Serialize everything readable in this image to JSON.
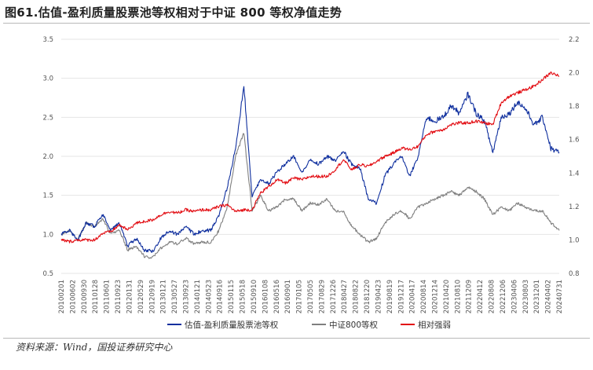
{
  "title": "图61.估值-盈利质量股票池等权相对于中证 800 等权净值走势",
  "source": "资料来源：Wind，国投证券研究中心",
  "chart_data": {
    "type": "line",
    "left_axis": {
      "min": 0.5,
      "max": 3.5,
      "ticks": [
        "0.5",
        "1.0",
        "1.5",
        "2.0",
        "2.5",
        "3.0",
        "3.5"
      ]
    },
    "right_axis": {
      "min": 0.8,
      "max": 2.2,
      "ticks": [
        "0.8",
        "1.0",
        "1.2",
        "1.4",
        "1.6",
        "1.8",
        "2.0",
        "2.2"
      ]
    },
    "x_ticks": [
      "20100201",
      "20100602",
      "20100930",
      "20110128",
      "20110601",
      "20110923",
      "20120131",
      "20120529",
      "20120919",
      "20130121",
      "20130527",
      "20130923",
      "20140121",
      "20140523",
      "20140916",
      "20150115",
      "20150518",
      "20150910",
      "20160108",
      "20160516",
      "20160901",
      "20170105",
      "20170505",
      "20170829",
      "20171226",
      "20180427",
      "20180822",
      "20181220",
      "20190423",
      "20190819",
      "20191217",
      "20200417",
      "20200814",
      "20201214",
      "20210420",
      "20210810",
      "20211209",
      "20220412",
      "20220808",
      "20221206",
      "20230406",
      "20230803",
      "20231201",
      "20240402",
      "20240731"
    ],
    "series": [
      {
        "name": "估值-盈利质量股票池等权",
        "axis": "left",
        "color": "#0f2f9e",
        "values": [
          1.0,
          1.05,
          0.93,
          1.15,
          1.1,
          1.25,
          1.05,
          1.15,
          0.85,
          0.95,
          0.8,
          0.78,
          0.95,
          1.05,
          1.0,
          1.1,
          1.0,
          1.05,
          1.05,
          1.25,
          1.6,
          2.1,
          2.9,
          1.5,
          1.7,
          1.65,
          1.8,
          1.9,
          2.0,
          1.8,
          1.95,
          1.9,
          2.0,
          1.95,
          2.05,
          1.9,
          1.85,
          1.45,
          1.4,
          1.75,
          1.9,
          2.0,
          1.75,
          2.0,
          2.5,
          2.45,
          2.5,
          2.65,
          2.55,
          2.8,
          2.55,
          2.45,
          2.05,
          2.5,
          2.55,
          2.7,
          2.6,
          2.4,
          2.5,
          2.1,
          2.05
        ]
      },
      {
        "name": "中证800等权",
        "axis": "left",
        "color": "#7f7f7f",
        "values": [
          1.0,
          1.05,
          0.93,
          1.15,
          1.1,
          1.2,
          1.0,
          1.05,
          0.8,
          0.85,
          0.72,
          0.7,
          0.82,
          0.9,
          0.88,
          0.95,
          0.88,
          0.9,
          0.9,
          1.05,
          1.35,
          2.0,
          2.3,
          1.3,
          1.5,
          1.3,
          1.35,
          1.45,
          1.45,
          1.3,
          1.4,
          1.38,
          1.45,
          1.3,
          1.3,
          1.1,
          1.0,
          0.9,
          0.95,
          1.15,
          1.25,
          1.3,
          1.2,
          1.35,
          1.4,
          1.45,
          1.5,
          1.55,
          1.5,
          1.6,
          1.55,
          1.45,
          1.25,
          1.35,
          1.3,
          1.4,
          1.35,
          1.3,
          1.3,
          1.15,
          1.05
        ]
      },
      {
        "name": "相对强弱",
        "axis": "right",
        "color": "#e20a10",
        "values": [
          1.0,
          0.99,
          1.0,
          1.0,
          1.0,
          1.04,
          1.05,
          1.09,
          1.06,
          1.1,
          1.11,
          1.12,
          1.15,
          1.17,
          1.16,
          1.18,
          1.17,
          1.18,
          1.18,
          1.2,
          1.21,
          1.17,
          1.18,
          1.18,
          1.28,
          1.32,
          1.36,
          1.34,
          1.37,
          1.36,
          1.38,
          1.38,
          1.38,
          1.42,
          1.48,
          1.42,
          1.45,
          1.44,
          1.47,
          1.5,
          1.52,
          1.55,
          1.54,
          1.56,
          1.63,
          1.65,
          1.66,
          1.69,
          1.7,
          1.7,
          1.71,
          1.7,
          1.69,
          1.82,
          1.86,
          1.88,
          1.9,
          1.92,
          1.96,
          2.0,
          1.98
        ]
      }
    ]
  }
}
